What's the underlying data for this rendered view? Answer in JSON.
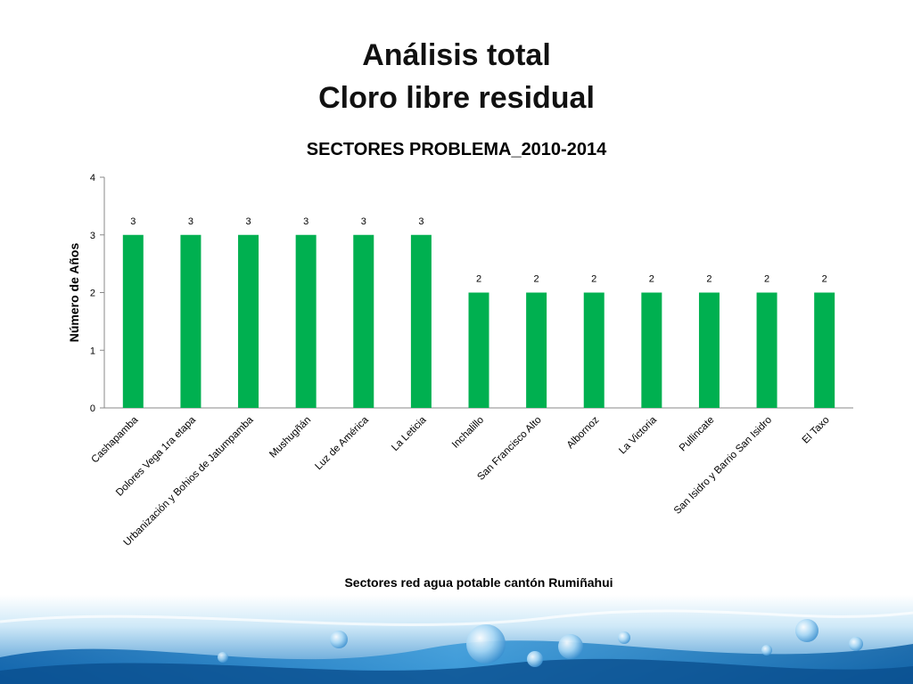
{
  "slide": {
    "title_line_1": "Análisis total",
    "title_line_2": "Cloro libre residual"
  },
  "chart_data": {
    "type": "bar",
    "title": "SECTORES PROBLEMA_2010-2014",
    "xlabel": "Sectores red agua potable cantón Rumiñahui",
    "ylabel": "Número de Años",
    "ylim": [
      0,
      4
    ],
    "yticks": [
      0,
      1,
      2,
      3,
      4
    ],
    "grid": false,
    "legend": "none",
    "bar_color": "#00b050",
    "categories": [
      "Cashapamba",
      "Dolores Vega 1ra etapa",
      "Urbanización y Bohios de Jatumpamba",
      "Mushugñán",
      "Luz de América",
      "La Leticia",
      "Inchalillo",
      "San Francisco Alto",
      "Albornoz",
      "La Victoria",
      "Pullincate",
      "San Isidro y Barrio San Isidro",
      "El Taxo"
    ],
    "values": [
      3,
      3,
      3,
      3,
      3,
      3,
      2,
      2,
      2,
      2,
      2,
      2,
      2
    ]
  },
  "decoration": {
    "water_colors": [
      "#0a5fa8",
      "#3a9ad9",
      "#bfe3f7"
    ]
  }
}
